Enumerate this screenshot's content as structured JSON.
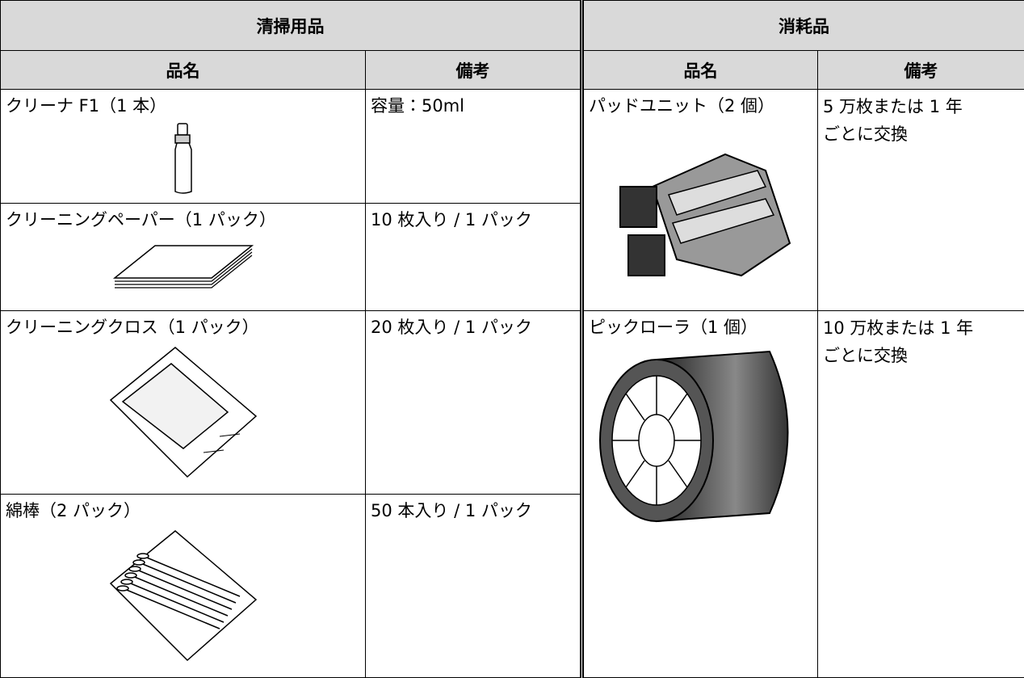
{
  "header": {
    "cleaning": "清掃用品",
    "consumables": "消耗品"
  },
  "columns": {
    "cleaning": [
      "品名",
      "備考"
    ],
    "consumables": [
      "品名",
      "備考"
    ]
  },
  "cleaning_items": [
    {
      "name": "クリーナ F1（1 本）",
      "note": "容量：50ml"
    },
    {
      "name": "クリーニングペーパー（1 パック）",
      "note": "10 枚入り / 1 パック"
    },
    {
      "name": "クリーニングクロス（1 パック）",
      "note": "20 枚入り / 1 パック"
    },
    {
      "name": "綿棒（2 パック）",
      "note": "50 本入り / 1 パック"
    }
  ],
  "consumables": [
    {
      "name": "パッドユニット（2 個）",
      "note": [
        "5 万枚または 1 年",
        "ごとに交換"
      ]
    },
    {
      "name": "ピックローラ（1 個）",
      "note": [
        "10 万枚または 1 年",
        "ごとに交換"
      ]
    }
  ]
}
